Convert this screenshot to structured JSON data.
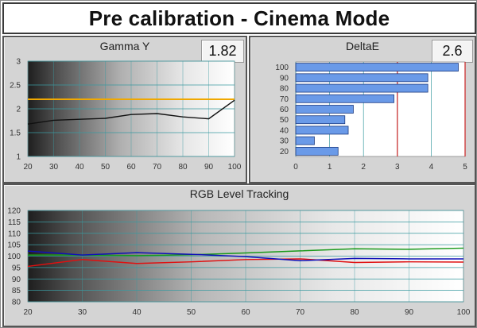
{
  "title": "Pre calibration - Cinema Mode",
  "colors": {
    "gamma_target": "#f0a800",
    "gamma_line": "#111111",
    "bar_fill": "#6a9ae8",
    "bar_stroke": "#1c3a80",
    "red_line": "#cc2222",
    "rgb_red": "#e01010",
    "rgb_green": "#1a9a1a",
    "rgb_blue": "#1010b8",
    "grid": "#3a9aa0"
  },
  "chart_data": [
    {
      "id": "gamma",
      "type": "line",
      "title": "Gamma Y",
      "value_box": "1.82",
      "x": [
        20,
        30,
        40,
        50,
        60,
        70,
        80,
        90,
        100
      ],
      "series": [
        {
          "values": [
            1.68,
            1.76,
            1.78,
            1.8,
            1.88,
            1.9,
            1.83,
            1.79,
            2.18
          ]
        }
      ],
      "target": 2.2,
      "xlim": [
        20,
        100
      ],
      "ylim": [
        1,
        3
      ],
      "xticks": [
        "20",
        "30",
        "40",
        "50",
        "60",
        "70",
        "80",
        "90",
        "100"
      ],
      "yticks": [
        "1",
        "1.5",
        "2",
        "2.5",
        "3"
      ]
    },
    {
      "id": "deltae",
      "type": "bar",
      "orientation": "horizontal",
      "title": "DeltaE",
      "value_box": "2.6",
      "categories": [
        "100",
        "90",
        "80",
        "70",
        "60",
        "50",
        "40",
        "30",
        "20"
      ],
      "values": [
        4.8,
        3.9,
        3.9,
        2.9,
        1.7,
        1.45,
        1.55,
        0.55,
        1.25
      ],
      "xlim": [
        0,
        5
      ],
      "xticks": [
        "0",
        "1",
        "2",
        "3",
        "4",
        "5"
      ],
      "reference_lines": [
        3,
        5
      ]
    },
    {
      "id": "rgb",
      "type": "line",
      "title": "RGB Level Tracking",
      "x": [
        20,
        30,
        40,
        50,
        60,
        70,
        80,
        90,
        100
      ],
      "series": [
        {
          "color": "red",
          "values": [
            95.5,
            98.5,
            96.8,
            97.5,
            98.5,
            98.8,
            97.2,
            97.5,
            97.4
          ]
        },
        {
          "color": "green",
          "values": [
            100.5,
            100.5,
            100.2,
            100.6,
            101.4,
            102.3,
            103.2,
            103,
            103.5
          ]
        },
        {
          "color": "blue",
          "values": [
            102.2,
            100.5,
            101.5,
            100.8,
            99.8,
            98,
            99,
            98.8,
            98.8
          ]
        }
      ],
      "xlim": [
        20,
        100
      ],
      "ylim": [
        80,
        120
      ],
      "xticks": [
        "20",
        "30",
        "40",
        "50",
        "60",
        "70",
        "80",
        "90",
        "100"
      ],
      "yticks": [
        "120",
        "115",
        "110",
        "105",
        "100",
        "95",
        "90",
        "85",
        "80"
      ]
    }
  ]
}
